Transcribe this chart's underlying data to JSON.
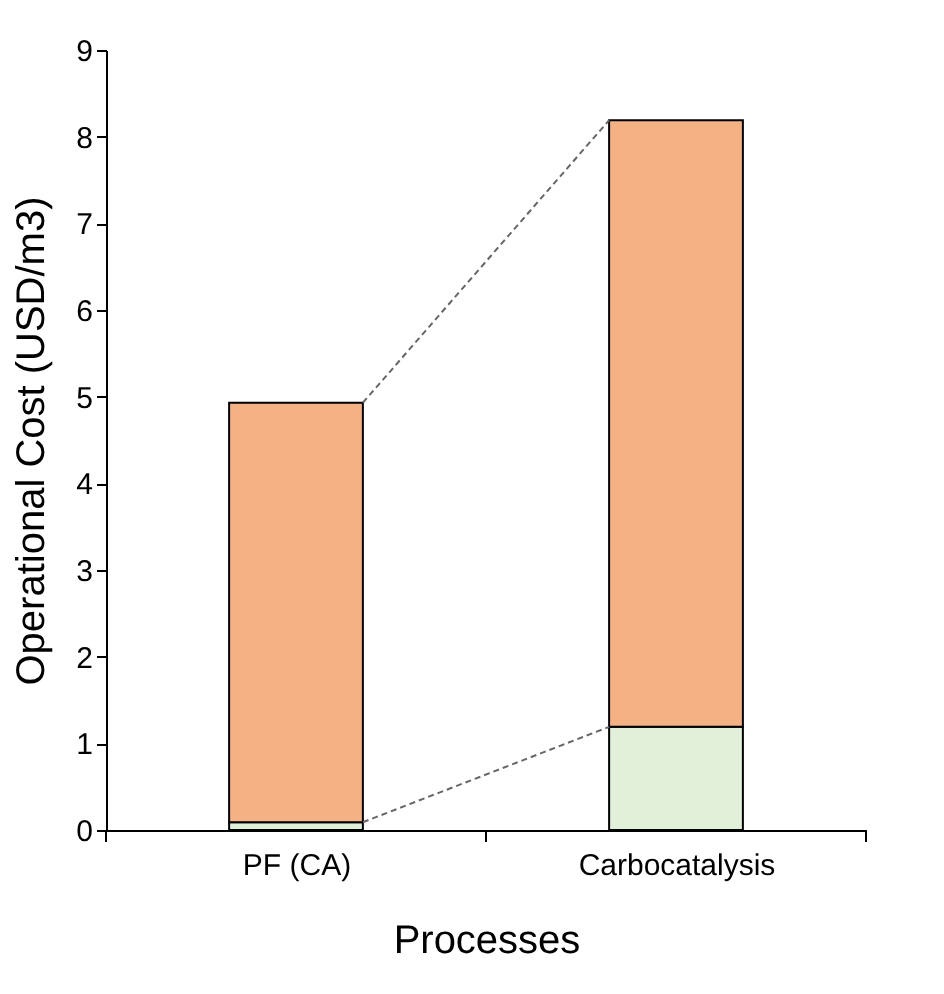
{
  "chart_data": {
    "type": "bar",
    "stacked": true,
    "xlabel": "Processes",
    "ylabel": "Operational Cost (USD/m3)",
    "categories": [
      "PF (CA)",
      "Carbocatalysis"
    ],
    "series": [
      {
        "color": "#e2f0d9",
        "values": [
          0.09,
          1.19
        ]
      },
      {
        "color": "#f4b183",
        "values": [
          4.84,
          7.0
        ]
      }
    ],
    "ylim": [
      0,
      9
    ],
    "yticks": [
      0,
      1,
      2,
      3,
      4,
      5,
      6,
      7,
      8,
      9
    ],
    "grid": false
  }
}
